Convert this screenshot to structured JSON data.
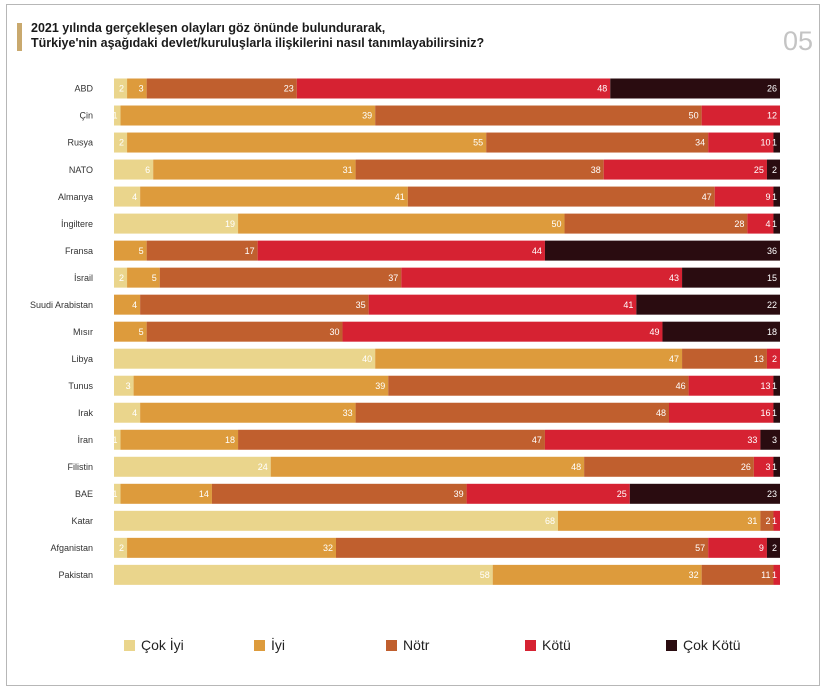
{
  "header": {
    "title_line1": "2021 yılında gerçekleşen olayları göz önünde bulundurarak,",
    "title_line2": "Türkiye'nin aşağıdaki devlet/kuruluşlarla ilişkilerini nasıl tanımlayabilirsiniz?",
    "page_number": "05"
  },
  "colors": {
    "cok_iyi": "#ead58c",
    "iyi": "#dd9b3c",
    "notr": "#c05f2e",
    "kotu": "#d62232",
    "cok_kotu": "#2a0c10",
    "accent_bar": "#c9a96e"
  },
  "chart_data": {
    "type": "bar",
    "orientation": "horizontal",
    "stacked": true,
    "normalized": true,
    "title": "2021 yılında gerçekleşen olayları göz önünde bulundurarak, Türkiye'nin aşağıdaki devlet/kuruluşlarla ilişkilerini nasıl tanımlayabilirsiniz?",
    "legend_position": "bottom",
    "grid": false,
    "categories": [
      "ABD",
      "Çin",
      "Rusya",
      "NATO",
      "Almanya",
      "İngiltere",
      "Fransa",
      "İsrail",
      "Suudi Arabistan",
      "Mısır",
      "Libya",
      "Tunus",
      "Irak",
      "İran",
      "Filistin",
      "BAE",
      "Katar",
      "Afganistan",
      "Pakistan"
    ],
    "series": [
      {
        "name": "Çok İyi",
        "color": "#ead58c",
        "values": [
          2,
          1,
          2,
          6,
          4,
          19,
          0,
          2,
          0,
          0,
          40,
          3,
          4,
          1,
          24,
          1,
          68,
          2,
          58
        ]
      },
      {
        "name": "İyi",
        "color": "#dd9b3c",
        "values": [
          3,
          39,
          55,
          31,
          41,
          50,
          5,
          5,
          4,
          5,
          47,
          39,
          33,
          18,
          48,
          14,
          31,
          32,
          32
        ]
      },
      {
        "name": "Nötr",
        "color": "#c05f2e",
        "values": [
          23,
          50,
          34,
          38,
          47,
          28,
          17,
          37,
          35,
          30,
          13,
          46,
          48,
          47,
          26,
          39,
          2,
          57,
          11
        ]
      },
      {
        "name": "Kötü",
        "color": "#d62232",
        "values": [
          48,
          12,
          10,
          25,
          9,
          4,
          44,
          43,
          41,
          49,
          2,
          13,
          16,
          33,
          3,
          25,
          1,
          9,
          1
        ]
      },
      {
        "name": "Çok Kötü",
        "color": "#2a0c10",
        "values": [
          26,
          0,
          1,
          2,
          1,
          1,
          36,
          15,
          22,
          18,
          0,
          1,
          1,
          3,
          1,
          23,
          0,
          2,
          0
        ]
      }
    ]
  },
  "legend": {
    "items": [
      {
        "label": "Çok İyi",
        "color": "#ead58c"
      },
      {
        "label": "İyi",
        "color": "#dd9b3c"
      },
      {
        "label": "Nötr",
        "color": "#c05f2e"
      },
      {
        "label": "Kötü",
        "color": "#d62232"
      },
      {
        "label": "Çok Kötü",
        "color": "#2a0c10"
      }
    ]
  }
}
